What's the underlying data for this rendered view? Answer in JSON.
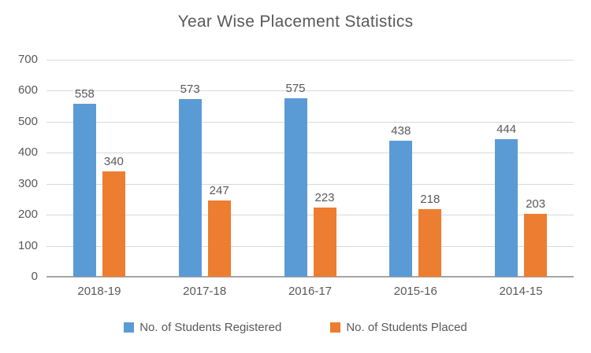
{
  "title": "Year Wise Placement Statistics",
  "colors": {
    "registered": "#5B9BD5",
    "placed": "#ED7D31",
    "grid": "#D9D9D9",
    "axis": "#A6A6A6",
    "text": "#595959",
    "background": "#FFFFFF"
  },
  "legend": {
    "items": [
      {
        "label": "No. of Students Registered",
        "color": "#5B9BD5"
      },
      {
        "label": "No. of Students Placed",
        "color": "#ED7D31"
      }
    ]
  },
  "chart_data": {
    "type": "bar",
    "title": "Year Wise Placement Statistics",
    "categories": [
      "2018-19",
      "2017-18",
      "2016-17",
      "2015-16",
      "2014-15"
    ],
    "series": [
      {
        "name": "No. of Students Registered",
        "color": "#5B9BD5",
        "values": [
          558,
          573,
          575,
          438,
          444
        ]
      },
      {
        "name": "No. of Students Placed",
        "color": "#ED7D31",
        "values": [
          340,
          247,
          223,
          218,
          203
        ]
      }
    ],
    "xlabel": "",
    "ylabel": "",
    "ylim": [
      0,
      700
    ],
    "yticks": [
      0,
      100,
      200,
      300,
      400,
      500,
      600,
      700
    ],
    "grid": true,
    "data_labels": true,
    "legend_position": "bottom"
  }
}
